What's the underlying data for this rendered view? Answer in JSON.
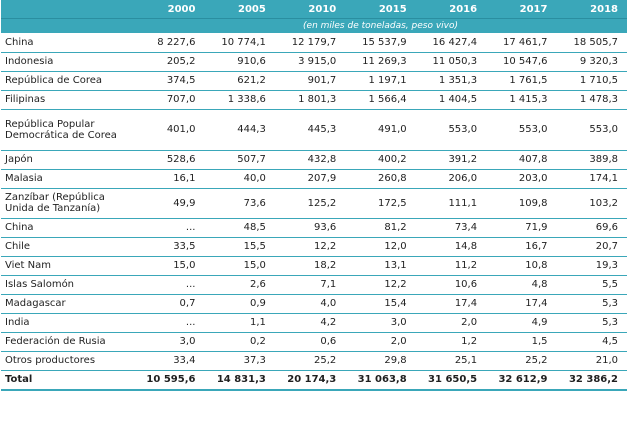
{
  "table": {
    "years": [
      "2000",
      "2005",
      "2010",
      "2015",
      "2016",
      "2017",
      "2018"
    ],
    "units_note": "(en miles de toneladas, peso vivo)",
    "rows": [
      {
        "name": "China",
        "values": [
          "8 227,6",
          "10 774,1",
          "12 179,7",
          "15 537,9",
          "16 427,4",
          "17 461,7",
          "18 505,7"
        ]
      },
      {
        "name": "Indonesia",
        "values": [
          "205,2",
          "910,6",
          "3 915,0",
          "11 269,3",
          "11 050,3",
          "10 547,6",
          "9 320,3"
        ]
      },
      {
        "name": "República de Corea",
        "values": [
          "374,5",
          "621,2",
          "901,7",
          "1 197,1",
          "1 351,3",
          "1 761,5",
          "1 710,5"
        ]
      },
      {
        "name": "Filipinas",
        "values": [
          "707,0",
          "1 338,6",
          "1 801,3",
          "1 566,4",
          "1 404,5",
          "1 415,3",
          "1 478,3"
        ]
      },
      {
        "name": "República Popular Democrática de Corea",
        "values": [
          "401,0",
          "444,3",
          "445,3",
          "491,0",
          "553,0",
          "553,0",
          "553,0"
        ]
      },
      {
        "name": "Japón",
        "values": [
          "528,6",
          "507,7",
          "432,8",
          "400,2",
          "391,2",
          "407,8",
          "389,8"
        ]
      },
      {
        "name": "Malasia",
        "values": [
          "16,1",
          "40,0",
          "207,9",
          "260,8",
          "206,0",
          "203,0",
          "174,1"
        ]
      },
      {
        "name": "Zanzíbar (República Unida de Tanzanía)",
        "values": [
          "49,9",
          "73,6",
          "125,2",
          "172,5",
          "111,1",
          "109,8",
          "103,2"
        ]
      },
      {
        "name": "China",
        "values": [
          "...",
          "48,5",
          "93,6",
          "81,2",
          "73,4",
          "71,9",
          "69,6"
        ]
      },
      {
        "name": "Chile",
        "values": [
          "33,5",
          "15,5",
          "12,2",
          "12,0",
          "14,8",
          "16,7",
          "20,7"
        ]
      },
      {
        "name": "Viet Nam",
        "values": [
          "15,0",
          "15,0",
          "18,2",
          "13,1",
          "11,2",
          "10,8",
          "19,3"
        ]
      },
      {
        "name": "Islas Salomón",
        "values": [
          "...",
          "2,6",
          "7,1",
          "12,2",
          "10,6",
          "4,8",
          "5,5"
        ]
      },
      {
        "name": "Madagascar",
        "values": [
          "0,7",
          "0,9",
          "4,0",
          "15,4",
          "17,4",
          "17,4",
          "5,3"
        ]
      },
      {
        "name": "India",
        "values": [
          "...",
          "1,1",
          "4,2",
          "3,0",
          "2,0",
          "4,9",
          "5,3"
        ]
      },
      {
        "name": "Federación de Rusia",
        "values": [
          "3,0",
          "0,2",
          "0,6",
          "2,0",
          "1,2",
          "1,5",
          "4,5"
        ]
      },
      {
        "name": "Otros productores",
        "values": [
          "33,4",
          "37,3",
          "25,2",
          "29,8",
          "25,1",
          "25,2",
          "21,0"
        ]
      }
    ],
    "total": {
      "name": "Total",
      "values": [
        "10 595,6",
        "14 831,3",
        "20 174,3",
        "31 063,8",
        "31 650,5",
        "32 612,9",
        "32 386,2"
      ]
    }
  },
  "colors": {
    "accent": "#3aa7b9"
  }
}
